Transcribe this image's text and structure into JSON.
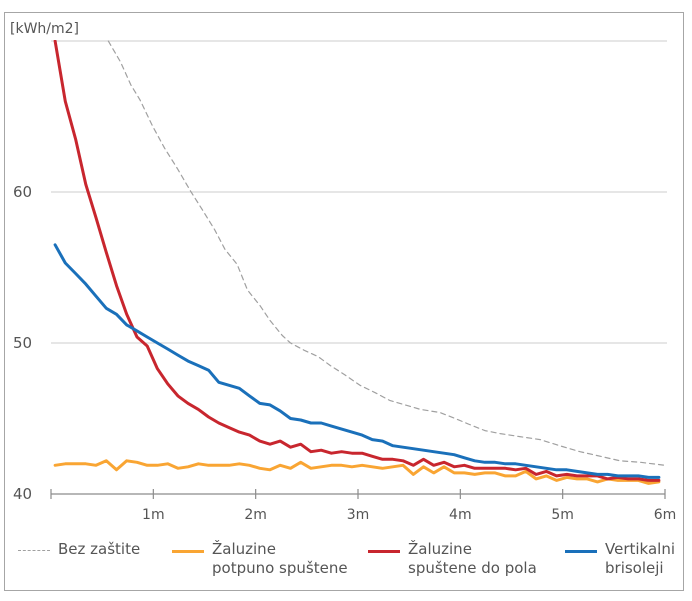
{
  "chart_data": {
    "type": "line",
    "title": "",
    "ylabel": "[kWh/m2]",
    "xlabel": "",
    "xlim": [
      0,
      6
    ],
    "ylim": [
      40,
      70
    ],
    "y_ticks": [
      {
        "value": 60,
        "label": "60"
      },
      {
        "value": 50,
        "label": "50"
      },
      {
        "value": 40,
        "label": "40"
      }
    ],
    "x_ticks": [
      {
        "value": 1,
        "label": "1m"
      },
      {
        "value": 2,
        "label": "2m"
      },
      {
        "value": 3,
        "label": "3m"
      },
      {
        "value": 4,
        "label": "4m"
      },
      {
        "value": 5,
        "label": "5m"
      },
      {
        "value": 6,
        "label": "6m"
      }
    ],
    "gridlines": [
      70,
      60,
      50
    ],
    "grid": true,
    "legend_position": "bottom",
    "series": [
      {
        "name": "Bez zaštite",
        "color": "#a0a0a0",
        "style": "dashed",
        "x": [
          0.56,
          0.68,
          0.78,
          0.87,
          0.99,
          1.11,
          1.24,
          1.36,
          1.49,
          1.6,
          1.7,
          1.82,
          1.92,
          2.04,
          2.14,
          2.26,
          2.34,
          2.48,
          2.61,
          2.73,
          2.87,
          3.02,
          3.17,
          3.31,
          3.46,
          3.61,
          3.8,
          3.95,
          4.09,
          4.24,
          4.39,
          4.58,
          4.78,
          4.97,
          5.17,
          5.37,
          5.56,
          5.76,
          6.0
        ],
        "values": [
          70.0,
          68.6,
          67.1,
          66.1,
          64.4,
          62.9,
          61.5,
          60.1,
          58.7,
          57.5,
          56.2,
          55.2,
          53.5,
          52.5,
          51.5,
          50.5,
          50.0,
          49.5,
          49.1,
          48.5,
          47.9,
          47.2,
          46.7,
          46.2,
          45.9,
          45.6,
          45.4,
          45.0,
          44.6,
          44.2,
          44.0,
          43.8,
          43.6,
          43.2,
          42.8,
          42.5,
          42.2,
          42.1,
          41.9
        ]
      },
      {
        "name": "Žaluzine potpuno spuštene",
        "color": "#f9a533",
        "style": "solid",
        "x": [
          0.04,
          0.14,
          0.24,
          0.34,
          0.44,
          0.54,
          0.64,
          0.74,
          0.84,
          0.94,
          1.04,
          1.14,
          1.24,
          1.34,
          1.44,
          1.54,
          1.64,
          1.74,
          1.84,
          1.94,
          2.04,
          2.14,
          2.24,
          2.34,
          2.44,
          2.54,
          2.64,
          2.74,
          2.84,
          2.94,
          3.04,
          3.14,
          3.24,
          3.34,
          3.44,
          3.54,
          3.64,
          3.74,
          3.84,
          3.94,
          4.04,
          4.14,
          4.24,
          4.34,
          4.44,
          4.54,
          4.64,
          4.74,
          4.84,
          4.94,
          5.04,
          5.14,
          5.24,
          5.34,
          5.44,
          5.54,
          5.64,
          5.74,
          5.84,
          5.94
        ],
        "values": [
          41.9,
          42.0,
          42.0,
          42.0,
          41.9,
          42.2,
          41.6,
          42.2,
          42.1,
          41.9,
          41.9,
          42.0,
          41.7,
          41.8,
          42.0,
          41.9,
          41.9,
          41.9,
          42.0,
          41.9,
          41.7,
          41.6,
          41.9,
          41.7,
          42.1,
          41.7,
          41.8,
          41.9,
          41.9,
          41.8,
          41.9,
          41.8,
          41.7,
          41.8,
          41.9,
          41.3,
          41.8,
          41.4,
          41.8,
          41.4,
          41.4,
          41.3,
          41.4,
          41.4,
          41.2,
          41.2,
          41.5,
          41.0,
          41.2,
          40.9,
          41.1,
          41.0,
          41.0,
          40.8,
          41.0,
          40.9,
          40.9,
          40.9,
          40.7,
          40.8
        ]
      },
      {
        "name": "Žaluzine spuštene do pola",
        "color": "#c8262e",
        "style": "solid",
        "x": [
          0.04,
          0.14,
          0.24,
          0.34,
          0.44,
          0.54,
          0.64,
          0.74,
          0.84,
          0.94,
          1.04,
          1.14,
          1.24,
          1.34,
          1.44,
          1.54,
          1.64,
          1.74,
          1.84,
          1.94,
          2.04,
          2.14,
          2.24,
          2.34,
          2.44,
          2.54,
          2.64,
          2.74,
          2.84,
          2.94,
          3.04,
          3.14,
          3.24,
          3.34,
          3.44,
          3.54,
          3.64,
          3.74,
          3.84,
          3.94,
          4.04,
          4.14,
          4.24,
          4.34,
          4.44,
          4.54,
          4.64,
          4.74,
          4.84,
          4.94,
          5.04,
          5.14,
          5.24,
          5.34,
          5.44,
          5.54,
          5.64,
          5.74,
          5.84,
          5.94
        ],
        "values": [
          70.0,
          66.0,
          63.5,
          60.5,
          58.3,
          56.0,
          53.8,
          51.9,
          50.4,
          49.8,
          48.3,
          47.3,
          46.5,
          46.0,
          45.6,
          45.1,
          44.7,
          44.4,
          44.1,
          43.9,
          43.5,
          43.3,
          43.5,
          43.1,
          43.3,
          42.8,
          42.9,
          42.7,
          42.8,
          42.7,
          42.7,
          42.5,
          42.3,
          42.3,
          42.2,
          41.9,
          42.3,
          41.9,
          42.1,
          41.8,
          41.9,
          41.7,
          41.7,
          41.7,
          41.7,
          41.6,
          41.7,
          41.3,
          41.5,
          41.2,
          41.3,
          41.2,
          41.2,
          41.2,
          41.0,
          41.1,
          41.0,
          41.0,
          40.9,
          40.9
        ]
      },
      {
        "name": "Vertikalni brisoleji",
        "color": "#1a70ba",
        "style": "solid",
        "x": [
          0.04,
          0.14,
          0.24,
          0.34,
          0.44,
          0.54,
          0.64,
          0.74,
          0.84,
          0.94,
          1.04,
          1.14,
          1.24,
          1.34,
          1.44,
          1.54,
          1.64,
          1.74,
          1.84,
          1.94,
          2.04,
          2.14,
          2.24,
          2.34,
          2.44,
          2.54,
          2.64,
          2.74,
          2.84,
          2.94,
          3.04,
          3.14,
          3.24,
          3.34,
          3.44,
          3.54,
          3.64,
          3.74,
          3.84,
          3.94,
          4.04,
          4.14,
          4.24,
          4.34,
          4.44,
          4.54,
          4.64,
          4.74,
          4.84,
          4.94,
          5.04,
          5.14,
          5.24,
          5.34,
          5.44,
          5.54,
          5.64,
          5.74,
          5.84,
          5.94
        ],
        "values": [
          56.5,
          55.3,
          54.6,
          53.9,
          53.1,
          52.3,
          51.9,
          51.2,
          50.8,
          50.4,
          50.0,
          49.6,
          49.2,
          48.8,
          48.5,
          48.2,
          47.4,
          47.2,
          47.0,
          46.5,
          46.0,
          45.9,
          45.5,
          45.0,
          44.9,
          44.7,
          44.7,
          44.5,
          44.3,
          44.1,
          43.9,
          43.6,
          43.5,
          43.2,
          43.1,
          43.0,
          42.9,
          42.8,
          42.7,
          42.6,
          42.4,
          42.2,
          42.1,
          42.1,
          42.0,
          42.0,
          41.9,
          41.8,
          41.7,
          41.6,
          41.6,
          41.5,
          41.4,
          41.3,
          41.3,
          41.2,
          41.2,
          41.2,
          41.1,
          41.1
        ]
      }
    ]
  },
  "legend": [
    {
      "label": "Bez zaštite",
      "color": "#a0a0a0",
      "style": "dashed"
    },
    {
      "label": "Žaluzine\npotpuno spuštene",
      "color": "#f9a533",
      "style": "solid"
    },
    {
      "label": "Žaluzine\nspuštene do pola",
      "color": "#c8262e",
      "style": "solid"
    },
    {
      "label": "Vertikalni\nbrisoleji",
      "color": "#1a70ba",
      "style": "solid"
    }
  ]
}
